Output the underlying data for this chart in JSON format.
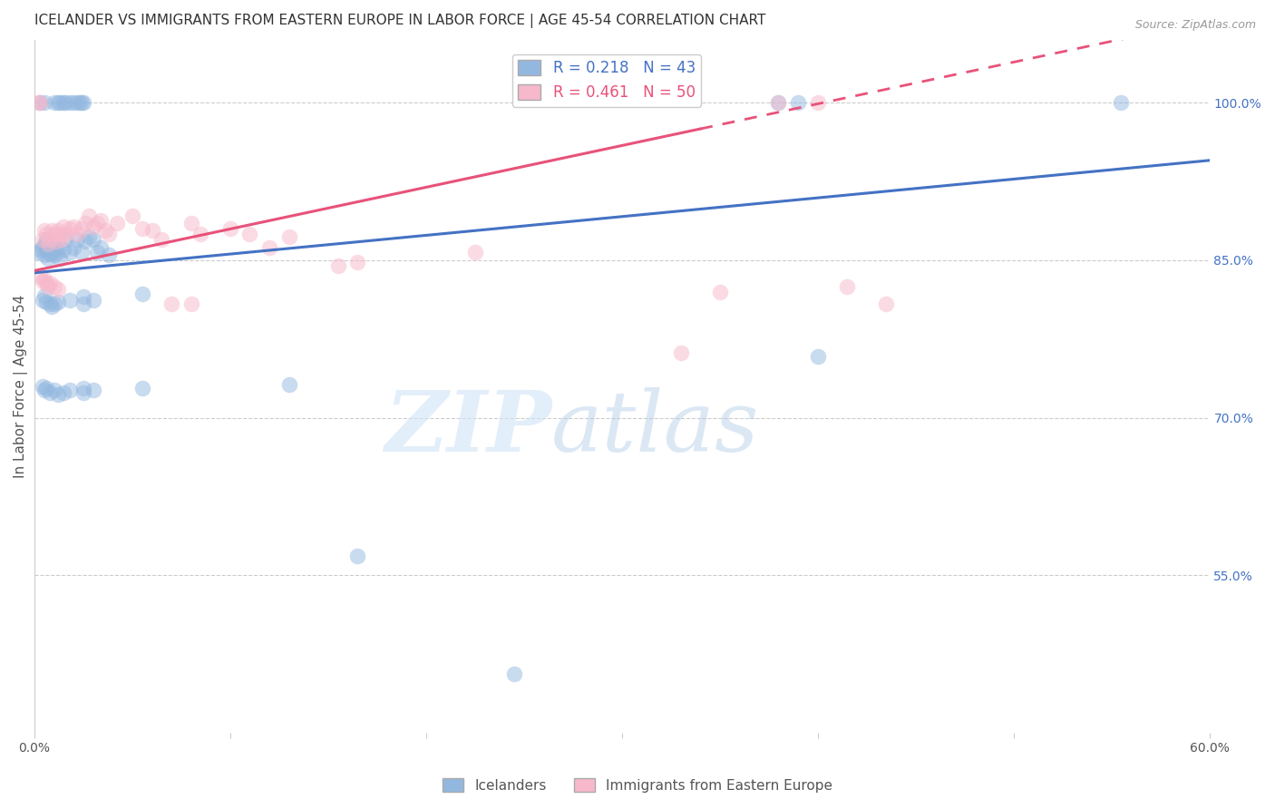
{
  "title": "ICELANDER VS IMMIGRANTS FROM EASTERN EUROPE IN LABOR FORCE | AGE 45-54 CORRELATION CHART",
  "source": "Source: ZipAtlas.com",
  "ylabel": "In Labor Force | Age 45-54",
  "xlim": [
    0.0,
    0.6
  ],
  "ylim": [
    0.4,
    1.06
  ],
  "blue_R": 0.218,
  "blue_N": 43,
  "pink_R": 0.461,
  "pink_N": 50,
  "blue_color": "#93b8e0",
  "pink_color": "#f7b8cb",
  "blue_line_color": "#4472c4",
  "pink_line_color": "#e8527a",
  "blue_scatter": [
    [
      0.002,
      0.858
    ],
    [
      0.003,
      0.86
    ],
    [
      0.004,
      0.862
    ],
    [
      0.005,
      0.865
    ],
    [
      0.005,
      0.855
    ],
    [
      0.006,
      0.86
    ],
    [
      0.006,
      0.87
    ],
    [
      0.007,
      0.858
    ],
    [
      0.007,
      0.852
    ],
    [
      0.008,
      0.862
    ],
    [
      0.008,
      0.856
    ],
    [
      0.009,
      0.868
    ],
    [
      0.009,
      0.858
    ],
    [
      0.01,
      0.862
    ],
    [
      0.01,
      0.855
    ],
    [
      0.011,
      0.86
    ],
    [
      0.012,
      0.858
    ],
    [
      0.013,
      0.852
    ],
    [
      0.015,
      0.86
    ],
    [
      0.016,
      0.87
    ],
    [
      0.018,
      0.858
    ],
    [
      0.02,
      0.862
    ],
    [
      0.022,
      0.87
    ],
    [
      0.024,
      0.858
    ],
    [
      0.026,
      0.868
    ],
    [
      0.028,
      0.872
    ],
    [
      0.03,
      0.87
    ],
    [
      0.032,
      0.858
    ],
    [
      0.034,
      0.862
    ],
    [
      0.038,
      0.855
    ],
    [
      0.004,
      0.812
    ],
    [
      0.005,
      0.816
    ],
    [
      0.006,
      0.81
    ],
    [
      0.008,
      0.808
    ],
    [
      0.009,
      0.806
    ],
    [
      0.01,
      0.808
    ],
    [
      0.012,
      0.81
    ],
    [
      0.018,
      0.812
    ],
    [
      0.025,
      0.815
    ],
    [
      0.025,
      0.808
    ],
    [
      0.03,
      0.812
    ],
    [
      0.055,
      0.818
    ],
    [
      0.4,
      0.758
    ]
  ],
  "blue_scatter_low": [
    [
      0.004,
      0.73
    ],
    [
      0.005,
      0.726
    ],
    [
      0.006,
      0.728
    ],
    [
      0.008,
      0.724
    ],
    [
      0.01,
      0.726
    ],
    [
      0.012,
      0.722
    ],
    [
      0.015,
      0.724
    ],
    [
      0.018,
      0.726
    ],
    [
      0.025,
      0.728
    ],
    [
      0.025,
      0.724
    ],
    [
      0.03,
      0.726
    ],
    [
      0.055,
      0.728
    ],
    [
      0.13,
      0.732
    ],
    [
      0.003,
      1.0
    ],
    [
      0.005,
      1.0
    ],
    [
      0.01,
      1.0
    ],
    [
      0.012,
      1.0
    ],
    [
      0.013,
      1.0
    ],
    [
      0.015,
      1.0
    ],
    [
      0.016,
      1.0
    ],
    [
      0.018,
      1.0
    ],
    [
      0.02,
      1.0
    ],
    [
      0.022,
      1.0
    ],
    [
      0.023,
      1.0
    ],
    [
      0.024,
      1.0
    ],
    [
      0.025,
      1.0
    ],
    [
      0.38,
      1.0
    ],
    [
      0.39,
      1.0
    ],
    [
      0.555,
      1.0
    ],
    [
      0.165,
      0.568
    ],
    [
      0.245,
      0.456
    ]
  ],
  "pink_scatter": [
    [
      0.004,
      0.87
    ],
    [
      0.005,
      0.878
    ],
    [
      0.006,
      0.875
    ],
    [
      0.007,
      0.865
    ],
    [
      0.008,
      0.87
    ],
    [
      0.009,
      0.878
    ],
    [
      0.01,
      0.875
    ],
    [
      0.011,
      0.868
    ],
    [
      0.012,
      0.878
    ],
    [
      0.013,
      0.875
    ],
    [
      0.014,
      0.87
    ],
    [
      0.015,
      0.882
    ],
    [
      0.016,
      0.875
    ],
    [
      0.018,
      0.88
    ],
    [
      0.02,
      0.882
    ],
    [
      0.022,
      0.875
    ],
    [
      0.024,
      0.88
    ],
    [
      0.026,
      0.885
    ],
    [
      0.028,
      0.892
    ],
    [
      0.03,
      0.882
    ],
    [
      0.032,
      0.885
    ],
    [
      0.034,
      0.888
    ],
    [
      0.036,
      0.878
    ],
    [
      0.038,
      0.875
    ],
    [
      0.042,
      0.885
    ],
    [
      0.05,
      0.892
    ],
    [
      0.055,
      0.88
    ],
    [
      0.06,
      0.878
    ],
    [
      0.065,
      0.87
    ],
    [
      0.08,
      0.885
    ],
    [
      0.085,
      0.875
    ],
    [
      0.1,
      0.88
    ],
    [
      0.11,
      0.875
    ],
    [
      0.12,
      0.862
    ],
    [
      0.13,
      0.872
    ],
    [
      0.155,
      0.845
    ],
    [
      0.165,
      0.848
    ],
    [
      0.225,
      0.858
    ],
    [
      0.35,
      0.82
    ],
    [
      0.415,
      0.825
    ]
  ],
  "pink_scatter_extra": [
    [
      0.003,
      0.835
    ],
    [
      0.004,
      0.83
    ],
    [
      0.005,
      0.832
    ],
    [
      0.006,
      0.828
    ],
    [
      0.007,
      0.825
    ],
    [
      0.008,
      0.828
    ],
    [
      0.01,
      0.825
    ],
    [
      0.012,
      0.822
    ],
    [
      0.07,
      0.808
    ],
    [
      0.08,
      0.808
    ],
    [
      0.002,
      1.0
    ],
    [
      0.003,
      1.0
    ],
    [
      0.38,
      1.0
    ],
    [
      0.4,
      1.0
    ],
    [
      0.435,
      0.808
    ],
    [
      0.33,
      0.762
    ]
  ],
  "watermark_zip": "ZIP",
  "watermark_atlas": "atlas",
  "background_color": "#ffffff",
  "grid_color": "#dddddd",
  "title_fontsize": 11,
  "axis_label_fontsize": 11,
  "tick_fontsize": 10,
  "legend_fontsize": 12
}
